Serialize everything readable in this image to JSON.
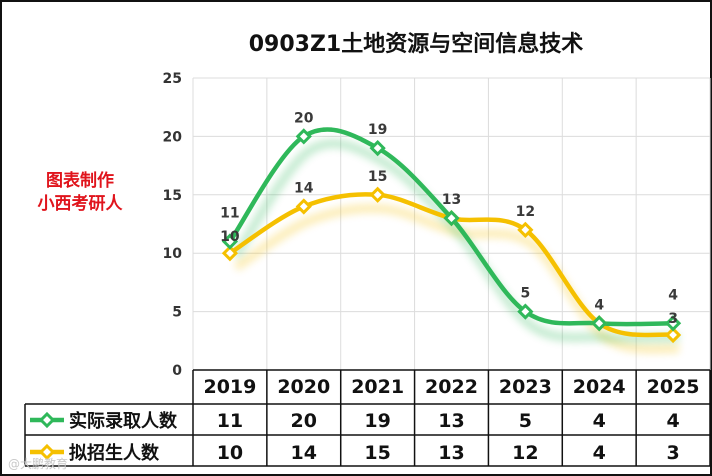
{
  "chart_data": {
    "type": "line",
    "title": "0903Z1土地资源与空间信息技术",
    "categories": [
      "2019",
      "2020",
      "2021",
      "2022",
      "2023",
      "2024",
      "2025"
    ],
    "ylim": [
      0,
      25
    ],
    "yticks": [
      "0",
      "5",
      "10",
      "15",
      "20",
      "25"
    ],
    "grid": true,
    "series": [
      {
        "name": "实际录取人数",
        "color": "#2fb85a",
        "values": [
          11,
          20,
          19,
          13,
          5,
          4,
          4
        ]
      },
      {
        "name": "拟招生人数",
        "color": "#f5c000",
        "values": [
          10,
          14,
          15,
          13,
          12,
          4,
          3
        ]
      }
    ],
    "legend_placement": "bottom-table"
  },
  "annotation": {
    "line1": "图表制作",
    "line2": "小西考研人"
  },
  "watermark": "@大鹏教育"
}
